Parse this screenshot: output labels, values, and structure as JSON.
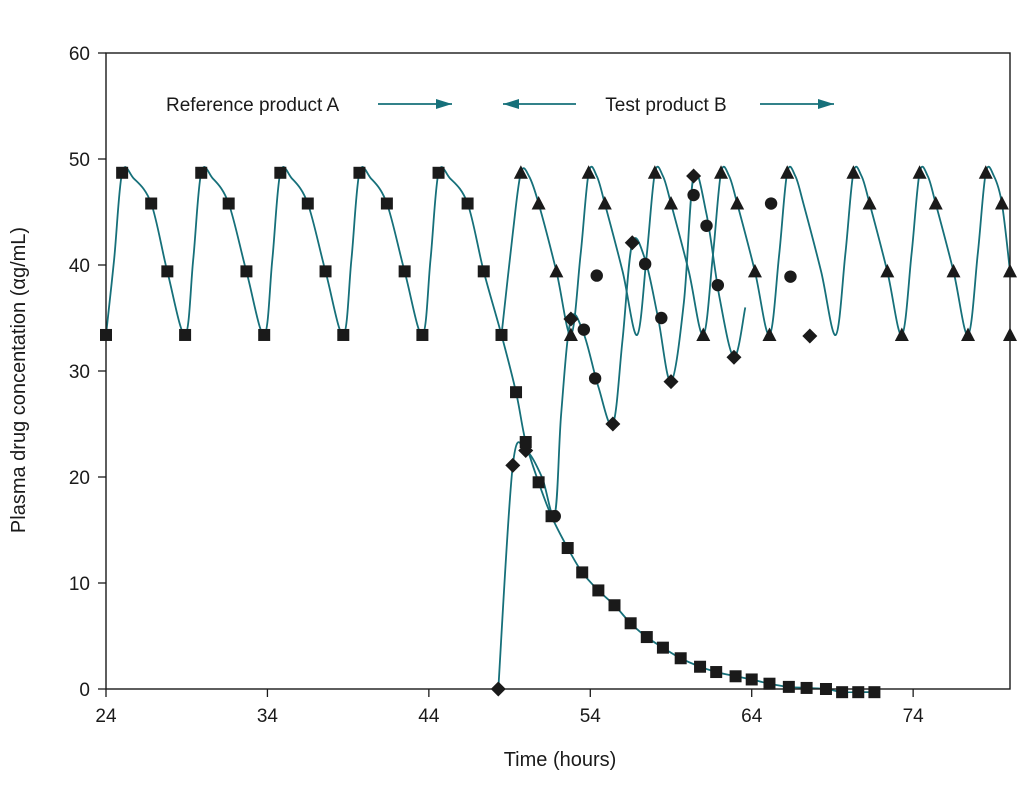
{
  "chart_data": {
    "type": "line",
    "title": "",
    "xlabel": "Time (hours)",
    "ylabel": "Plasma drug concentation (αg/mL)",
    "xlim": [
      24,
      80
    ],
    "ylim": [
      0,
      60
    ],
    "xticks": [
      24,
      34,
      44,
      54,
      64,
      74
    ],
    "yticks": [
      0,
      10,
      20,
      30,
      40,
      50,
      60
    ],
    "grid": false,
    "legend": "none",
    "annotations": [
      {
        "text": "Reference product A",
        "arrow": "right"
      },
      {
        "text": "Test product B",
        "arrow": "both"
      }
    ],
    "colors": {
      "line": "#16707a",
      "marker": "#1a1a1a",
      "arrow": "#16707a"
    },
    "series": [
      {
        "marker": "square",
        "curve_points": [
          [
            24.0,
            33.4
          ],
          [
            24.5,
            40.5
          ],
          [
            25.0,
            48.7
          ],
          [
            25.7,
            48.2
          ],
          [
            26.8,
            45.8
          ],
          [
            27.8,
            39.4
          ],
          [
            28.9,
            33.4
          ],
          [
            29.4,
            40.5
          ],
          [
            29.9,
            48.7
          ],
          [
            30.6,
            48.2
          ],
          [
            31.6,
            45.8
          ],
          [
            32.7,
            39.4
          ],
          [
            33.8,
            33.4
          ],
          [
            34.3,
            40.5
          ],
          [
            34.8,
            48.7
          ],
          [
            35.5,
            48.2
          ],
          [
            36.5,
            45.8
          ],
          [
            37.6,
            39.4
          ],
          [
            38.7,
            33.4
          ],
          [
            39.2,
            40.5
          ],
          [
            39.7,
            48.7
          ],
          [
            40.4,
            48.2
          ],
          [
            41.4,
            45.8
          ],
          [
            42.5,
            39.4
          ],
          [
            43.6,
            33.4
          ],
          [
            44.1,
            40.5
          ],
          [
            44.6,
            48.7
          ],
          [
            45.3,
            48.2
          ],
          [
            46.4,
            45.8
          ],
          [
            47.4,
            39.4
          ],
          [
            48.5,
            33.4
          ],
          [
            49.4,
            28.0
          ],
          [
            50.0,
            23.3
          ],
          [
            50.8,
            19.5
          ],
          [
            51.6,
            16.3
          ],
          [
            52.6,
            13.3
          ],
          [
            53.5,
            11.0
          ],
          [
            54.5,
            9.3
          ],
          [
            55.5,
            7.9
          ],
          [
            56.5,
            6.2
          ],
          [
            57.5,
            4.9
          ],
          [
            58.5,
            3.9
          ],
          [
            59.6,
            2.9
          ],
          [
            60.8,
            2.1
          ],
          [
            61.8,
            1.6
          ],
          [
            63.0,
            1.2
          ],
          [
            64.0,
            0.9
          ],
          [
            65.1,
            0.5
          ],
          [
            66.3,
            0.2
          ],
          [
            67.4,
            0.1
          ],
          [
            68.6,
            0.0
          ],
          [
            69.6,
            -0.3
          ],
          [
            70.6,
            -0.3
          ],
          [
            71.6,
            -0.3
          ]
        ],
        "marker_points": [
          [
            24.0,
            33.4
          ],
          [
            25.0,
            48.7
          ],
          [
            26.8,
            45.8
          ],
          [
            27.8,
            39.4
          ],
          [
            28.9,
            33.4
          ],
          [
            29.9,
            48.7
          ],
          [
            31.6,
            45.8
          ],
          [
            32.7,
            39.4
          ],
          [
            33.8,
            33.4
          ],
          [
            34.8,
            48.7
          ],
          [
            36.5,
            45.8
          ],
          [
            37.6,
            39.4
          ],
          [
            38.7,
            33.4
          ],
          [
            39.7,
            48.7
          ],
          [
            41.4,
            45.8
          ],
          [
            42.5,
            39.4
          ],
          [
            43.6,
            33.4
          ],
          [
            44.6,
            48.7
          ],
          [
            46.4,
            45.8
          ],
          [
            47.4,
            39.4
          ],
          [
            48.5,
            33.4
          ],
          [
            49.4,
            28.0
          ],
          [
            50.0,
            23.3
          ],
          [
            50.8,
            19.5
          ],
          [
            51.6,
            16.3
          ],
          [
            52.6,
            13.3
          ],
          [
            53.5,
            11.0
          ],
          [
            54.5,
            9.3
          ],
          [
            55.5,
            7.9
          ],
          [
            56.5,
            6.2
          ],
          [
            57.5,
            4.9
          ],
          [
            58.5,
            3.9
          ],
          [
            59.6,
            2.9
          ],
          [
            60.8,
            2.1
          ],
          [
            61.8,
            1.6
          ],
          [
            63.0,
            1.2
          ],
          [
            64.0,
            0.9
          ],
          [
            65.1,
            0.5
          ],
          [
            66.3,
            0.2
          ],
          [
            67.4,
            0.1
          ],
          [
            68.6,
            0.0
          ],
          [
            69.6,
            -0.3
          ],
          [
            70.6,
            -0.3
          ],
          [
            71.6,
            -0.3
          ]
        ]
      },
      {
        "marker": "triangle",
        "curve_points": [
          [
            48.5,
            33.4
          ],
          [
            49.2,
            43.0
          ],
          [
            49.7,
            48.7
          ],
          [
            50.2,
            48.4
          ],
          [
            50.8,
            45.8
          ],
          [
            51.9,
            39.4
          ],
          [
            52.8,
            33.4
          ],
          [
            53.4,
            41.0
          ],
          [
            53.9,
            48.7
          ],
          [
            54.4,
            48.4
          ],
          [
            54.9,
            45.8
          ],
          [
            56.0,
            39.4
          ],
          [
            56.9,
            33.4
          ],
          [
            57.5,
            41.0
          ],
          [
            58.0,
            48.7
          ],
          [
            58.5,
            48.4
          ],
          [
            59.0,
            45.8
          ],
          [
            60.1,
            39.4
          ],
          [
            61.0,
            33.4
          ],
          [
            61.6,
            41.0
          ],
          [
            62.1,
            48.7
          ],
          [
            62.6,
            48.4
          ],
          [
            63.1,
            45.8
          ],
          [
            64.2,
            39.4
          ],
          [
            65.1,
            33.4
          ],
          [
            65.7,
            41.0
          ],
          [
            66.2,
            48.7
          ],
          [
            66.7,
            48.4
          ],
          [
            67.2,
            45.8
          ],
          [
            68.3,
            39.4
          ],
          [
            69.2,
            33.4
          ],
          [
            69.8,
            41.0
          ],
          [
            70.3,
            48.7
          ],
          [
            70.8,
            48.4
          ],
          [
            71.3,
            45.8
          ],
          [
            72.4,
            39.4
          ],
          [
            73.3,
            33.4
          ],
          [
            73.9,
            41.0
          ],
          [
            74.4,
            48.7
          ],
          [
            74.9,
            48.4
          ],
          [
            75.4,
            45.8
          ],
          [
            76.5,
            39.4
          ],
          [
            77.4,
            33.4
          ],
          [
            78.0,
            41.0
          ],
          [
            78.5,
            48.7
          ],
          [
            79.0,
            48.4
          ],
          [
            79.5,
            45.8
          ],
          [
            80.0,
            39.4
          ]
        ],
        "marker_points": [
          [
            49.7,
            48.7
          ],
          [
            50.8,
            45.8
          ],
          [
            51.9,
            39.4
          ],
          [
            52.8,
            33.4
          ],
          [
            53.9,
            48.7
          ],
          [
            54.9,
            45.8
          ],
          [
            58.0,
            48.7
          ],
          [
            59.0,
            45.8
          ],
          [
            61.0,
            33.4
          ],
          [
            62.1,
            48.7
          ],
          [
            63.1,
            45.8
          ],
          [
            64.2,
            39.4
          ],
          [
            65.1,
            33.4
          ],
          [
            66.2,
            48.7
          ],
          [
            70.3,
            48.7
          ],
          [
            71.3,
            45.8
          ],
          [
            72.4,
            39.4
          ],
          [
            73.3,
            33.4
          ],
          [
            74.4,
            48.7
          ],
          [
            75.4,
            45.8
          ],
          [
            76.5,
            39.4
          ],
          [
            77.4,
            33.4
          ],
          [
            78.5,
            48.7
          ],
          [
            79.5,
            45.8
          ],
          [
            80.0,
            39.4
          ],
          [
            80.0,
            33.4
          ]
        ]
      },
      {
        "marker": "diamond",
        "curve_points": [
          [
            48.3,
            0.0
          ],
          [
            49.2,
            21.1
          ],
          [
            50.0,
            22.5
          ],
          [
            51.0,
            20.0
          ],
          [
            51.8,
            16.5
          ],
          [
            52.2,
            26.0
          ],
          [
            52.8,
            34.9
          ],
          [
            53.6,
            33.5
          ],
          [
            54.5,
            28.5
          ],
          [
            55.4,
            25.0
          ],
          [
            56.0,
            33.0
          ],
          [
            56.6,
            42.1
          ],
          [
            57.4,
            40.5
          ],
          [
            58.2,
            35.0
          ],
          [
            59.0,
            29.0
          ],
          [
            59.8,
            36.5
          ],
          [
            60.4,
            48.4
          ],
          [
            61.2,
            44.8
          ],
          [
            62.0,
            37.0
          ],
          [
            62.9,
            31.3
          ],
          [
            63.6,
            36.0
          ]
        ],
        "marker_points": [
          [
            48.3,
            0.0
          ],
          [
            49.2,
            21.1
          ],
          [
            50.0,
            22.5
          ],
          [
            52.8,
            34.9
          ],
          [
            55.4,
            25.0
          ],
          [
            56.6,
            42.1
          ],
          [
            59.0,
            29.0
          ],
          [
            60.4,
            48.4
          ],
          [
            62.9,
            31.3
          ],
          [
            67.6,
            33.3
          ]
        ]
      },
      {
        "marker": "circle",
        "marker_points": [
          [
            51.8,
            16.3
          ],
          [
            53.6,
            33.9
          ],
          [
            54.3,
            29.3
          ],
          [
            54.4,
            39.0
          ],
          [
            57.4,
            40.1
          ],
          [
            58.4,
            35.0
          ],
          [
            60.4,
            46.6
          ],
          [
            61.2,
            43.7
          ],
          [
            61.9,
            38.1
          ],
          [
            65.2,
            45.8
          ],
          [
            66.4,
            38.9
          ]
        ]
      }
    ]
  }
}
